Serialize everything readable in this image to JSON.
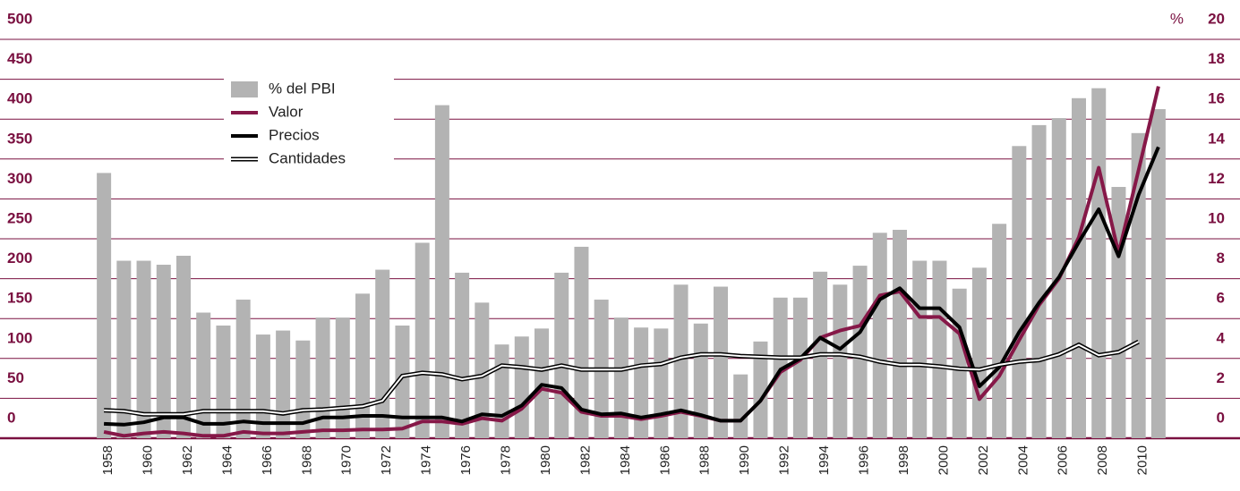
{
  "chart_data": {
    "type": "bar-line",
    "categories": [
      "1958",
      null,
      "1960",
      null,
      "1962",
      null,
      "1964",
      null,
      "1966",
      null,
      "1968",
      null,
      "1970",
      null,
      "1972",
      null,
      "1974",
      null,
      "1976",
      null,
      "1978",
      null,
      "1980",
      null,
      "1982",
      null,
      "1984",
      null,
      "1986",
      null,
      "1988",
      null,
      "1990",
      null,
      "1992",
      null,
      "1994",
      null,
      "1996",
      null,
      "1998",
      null,
      "2000",
      null,
      "2002",
      null,
      "2004",
      null,
      "2006",
      null,
      "2008",
      null,
      "2010",
      null
    ],
    "y2_label": "%",
    "series": [
      {
        "name": "% del PBI",
        "type": "bar",
        "axis": "y2",
        "color": "#b3b3b3",
        "values": [
          13.3,
          8.9,
          8.9,
          8.7,
          9.15,
          6.3,
          5.65,
          6.95,
          5.2,
          5.4,
          4.9,
          6.05,
          6.05,
          7.25,
          8.45,
          5.65,
          9.8,
          16.7,
          8.3,
          6.8,
          4.7,
          5.1,
          5.5,
          8.3,
          9.6,
          6.95,
          6.05,
          5.55,
          5.5,
          7.7,
          5.75,
          7.6,
          3.2,
          4.85,
          7.05,
          7.05,
          8.35,
          7.7,
          8.65,
          10.3,
          10.45,
          8.9,
          8.9,
          7.5,
          8.55,
          10.75,
          14.65,
          15.7,
          16.05,
          17.05,
          17.55,
          12.6,
          15.3,
          16.5
        ]
      },
      {
        "name": "Valor",
        "type": "line",
        "color": "#861848",
        "values": [
          8,
          3,
          6,
          8,
          6,
          3,
          3,
          8,
          6,
          6,
          8,
          10,
          10,
          11,
          11,
          12,
          21,
          21,
          18,
          25,
          22,
          37,
          62,
          57,
          33,
          28,
          28,
          24,
          28,
          33,
          28,
          22,
          22,
          47,
          83,
          98,
          126,
          135,
          141,
          179,
          184,
          152,
          152,
          131,
          49,
          78,
          123,
          167,
          200,
          252,
          339,
          232,
          336,
          441
        ]
      },
      {
        "name": "Precios",
        "type": "line",
        "color": "#000000",
        "values": [
          18,
          17,
          20,
          26,
          26,
          18,
          18,
          21,
          19,
          19,
          19,
          26,
          26,
          28,
          28,
          26,
          26,
          26,
          21,
          30,
          28,
          41,
          67,
          63,
          36,
          30,
          31,
          26,
          30,
          35,
          29,
          22,
          22,
          47,
          86,
          100,
          126,
          112,
          133,
          174,
          188,
          163,
          163,
          139,
          65,
          89,
          133,
          170,
          202,
          246,
          287,
          228,
          305,
          365
        ]
      },
      {
        "name": "Cantidades",
        "type": "double-line",
        "color": "#000000",
        "values": [
          35,
          34,
          30,
          30,
          30,
          34,
          34,
          34,
          34,
          31,
          35,
          36,
          38,
          40,
          47,
          78,
          82,
          80,
          74,
          78,
          91,
          89,
          86,
          91,
          86,
          86,
          86,
          91,
          93,
          101,
          105,
          105,
          103,
          102,
          101,
          101,
          105,
          105,
          102,
          96,
          92,
          92,
          90,
          87,
          86,
          92,
          96,
          98,
          105,
          117,
          104,
          108,
          121,
          null
        ]
      }
    ],
    "ylim": [
      0,
      500
    ],
    "yticks": [
      0,
      50,
      100,
      150,
      200,
      250,
      300,
      350,
      400,
      450,
      500
    ],
    "y2lim": [
      0,
      20
    ],
    "y2ticks": [
      0,
      2,
      4,
      6,
      8,
      10,
      12,
      14,
      16,
      18,
      20
    ],
    "grid": true
  }
}
